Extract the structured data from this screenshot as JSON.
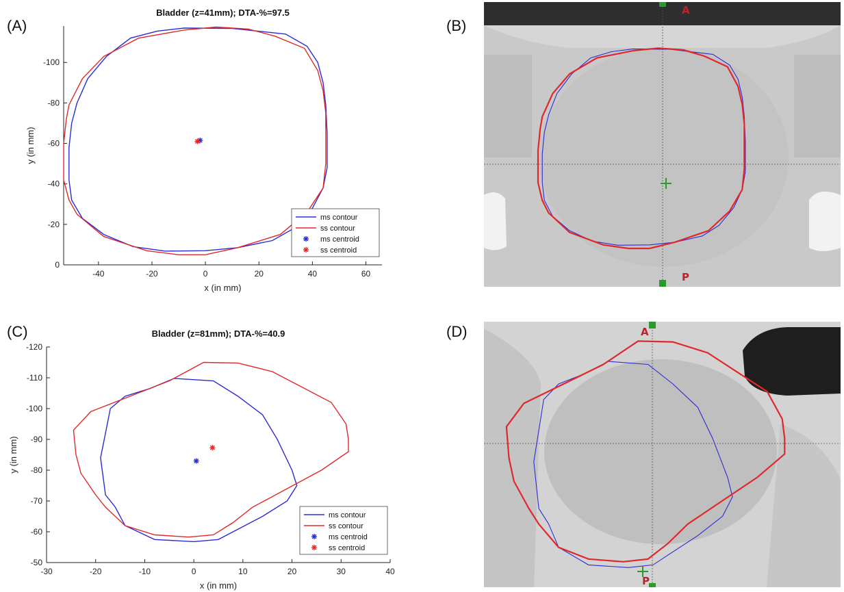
{
  "panels": {
    "A": "(A)",
    "B": "(B)",
    "C": "(C)",
    "D": "(D)"
  },
  "colors": {
    "ms": "#2b2bd6",
    "ss": "#e0282a",
    "crosshair": "#555555",
    "marker_green": "#2a9a2a",
    "orient_label": "#c0202a"
  },
  "ct_labels": {
    "B_top": "A",
    "B_bottom": "P",
    "D_top": "A",
    "D_bottom": "P"
  },
  "chart_data": [
    {
      "type": "line",
      "panel": "A",
      "title": "Bladder (z=41mm); DTA-%=97.5",
      "xlabel": "x  (in mm)",
      "ylabel": "y  (in mm)",
      "xlim": [
        -53,
        66
      ],
      "ylim": [
        -118,
        0
      ],
      "y_reversed": true,
      "xticks": [
        -40,
        -20,
        0,
        20,
        40,
        60
      ],
      "yticks": [
        0,
        -20,
        -40,
        -60,
        -80,
        -100
      ],
      "legend_position": "bottom-right",
      "legend": [
        "ms contour",
        "ss contour",
        "ms centroid",
        "ss centroid"
      ],
      "series": [
        {
          "name": "ms contour",
          "values": [
            [
              -8,
              -117
            ],
            [
              10,
              -116.8
            ],
            [
              30,
              -114
            ],
            [
              38,
              -108
            ],
            [
              42,
              -100
            ],
            [
              44,
              -90
            ],
            [
              45,
              -79
            ],
            [
              45.5,
              -65
            ],
            [
              45.5,
              -48
            ],
            [
              44,
              -38
            ],
            [
              40,
              -28
            ],
            [
              33,
              -18
            ],
            [
              25,
              -12
            ],
            [
              12,
              -8.5
            ],
            [
              0,
              -7
            ],
            [
              -15,
              -6.8
            ],
            [
              -27,
              -9
            ],
            [
              -38,
              -15
            ],
            [
              -46,
              -23
            ],
            [
              -50,
              -32
            ],
            [
              -51,
              -42
            ],
            [
              -51,
              -58
            ],
            [
              -50,
              -70
            ],
            [
              -48,
              -80
            ],
            [
              -44,
              -92
            ],
            [
              -37,
              -103
            ],
            [
              -28,
              -112
            ],
            [
              -18,
              -115.5
            ],
            [
              -8,
              -117
            ]
          ]
        },
        {
          "name": "ss contour",
          "values": [
            [
              -8,
              -116
            ],
            [
              4,
              -117.5
            ],
            [
              16,
              -116.5
            ],
            [
              26,
              -113
            ],
            [
              37,
              -107
            ],
            [
              42,
              -96
            ],
            [
              44,
              -86
            ],
            [
              45,
              -75
            ],
            [
              45,
              -62
            ],
            [
              45,
              -50
            ],
            [
              44,
              -38
            ],
            [
              38,
              -26
            ],
            [
              28,
              -15
            ],
            [
              12,
              -8.5
            ],
            [
              0,
              -5
            ],
            [
              -10,
              -5
            ],
            [
              -22,
              -7
            ],
            [
              -38,
              -14
            ],
            [
              -48,
              -25
            ],
            [
              -51,
              -32
            ],
            [
              -53,
              -42
            ],
            [
              -53,
              -60
            ],
            [
              -52,
              -72
            ],
            [
              -51,
              -79
            ],
            [
              -46,
              -92
            ],
            [
              -38,
              -103
            ],
            [
              -25,
              -112
            ],
            [
              -8,
              -116
            ]
          ]
        },
        {
          "name": "ms centroid",
          "marker": true,
          "values": [
            [
              -2,
              -61.5
            ]
          ]
        },
        {
          "name": "ss centroid",
          "marker": true,
          "values": [
            [
              -3,
              -61
            ]
          ]
        }
      ]
    },
    {
      "type": "line",
      "panel": "C",
      "title": "Bladder (z=81mm); DTA-%=40.9",
      "xlabel": "x  (in mm)",
      "ylabel": "y  (in mm)",
      "xlim": [
        -30,
        40
      ],
      "ylim": [
        -120,
        -50
      ],
      "y_reversed": true,
      "xticks": [
        -30,
        -20,
        -10,
        0,
        10,
        20,
        30,
        40
      ],
      "yticks": [
        -50,
        -60,
        -70,
        -80,
        -90,
        -100,
        -110,
        -120
      ],
      "legend_position": "bottom-right",
      "legend": [
        "ms contour",
        "ss contour",
        "ms centroid",
        "ss centroid"
      ],
      "series": [
        {
          "name": "ms contour",
          "values": [
            [
              -4,
              -109.8
            ],
            [
              4,
              -109
            ],
            [
              9,
              -104
            ],
            [
              14,
              -98
            ],
            [
              17,
              -90
            ],
            [
              20,
              -80
            ],
            [
              21,
              -75
            ],
            [
              19,
              -70
            ],
            [
              14,
              -65
            ],
            [
              8,
              -60
            ],
            [
              5,
              -57.5
            ],
            [
              0,
              -56.8
            ],
            [
              -8,
              -57.5
            ],
            [
              -14,
              -62
            ],
            [
              -16,
              -68
            ],
            [
              -18,
              -72
            ],
            [
              -18.5,
              -78
            ],
            [
              -19,
              -84
            ],
            [
              -18,
              -92
            ],
            [
              -17,
              -100
            ],
            [
              -14,
              -104
            ],
            [
              -9,
              -106.5
            ],
            [
              -4,
              -109.8
            ]
          ]
        },
        {
          "name": "ss contour",
          "values": [
            [
              2,
              -115
            ],
            [
              9,
              -114.8
            ],
            [
              16,
              -112
            ],
            [
              22,
              -107
            ],
            [
              28,
              -102
            ],
            [
              31,
              -95
            ],
            [
              31.5,
              -90
            ],
            [
              31.5,
              -86
            ],
            [
              26,
              -80
            ],
            [
              19,
              -74
            ],
            [
              12,
              -68
            ],
            [
              8,
              -63
            ],
            [
              4,
              -59
            ],
            [
              -1,
              -58.3
            ],
            [
              -8,
              -59
            ],
            [
              -14,
              -62
            ],
            [
              -18,
              -68
            ],
            [
              -20,
              -72
            ],
            [
              -23,
              -79
            ],
            [
              -24,
              -85
            ],
            [
              -24.5,
              -93
            ],
            [
              -21,
              -99
            ],
            [
              -13,
              -104
            ],
            [
              -5,
              -109
            ],
            [
              2,
              -115
            ]
          ]
        },
        {
          "name": "ms centroid",
          "marker": true,
          "values": [
            [
              0.5,
              -83
            ]
          ]
        },
        {
          "name": "ss centroid",
          "marker": true,
          "values": [
            [
              3.8,
              -87.3
            ]
          ]
        }
      ]
    }
  ]
}
